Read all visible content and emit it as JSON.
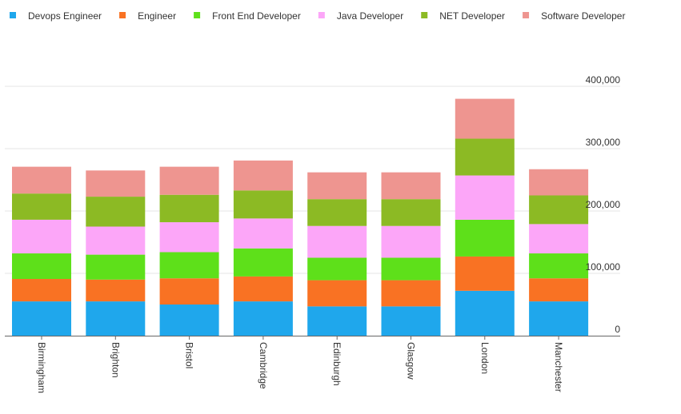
{
  "chart_data": {
    "type": "bar",
    "stacked": true,
    "title": "",
    "xlabel": "",
    "ylabel": "",
    "ylim": [
      0,
      400000
    ],
    "grid": true,
    "legend_position": "top-left",
    "categories": [
      "Birmingham",
      "Brighton",
      "Bristol",
      "Cambridge",
      "Edinburgh",
      "Glasgow",
      "London",
      "Manchester"
    ],
    "y_ticks": [
      {
        "value": 0,
        "label": "0"
      },
      {
        "value": 100000,
        "label": "100,000"
      },
      {
        "value": 200000,
        "label": "200,000"
      },
      {
        "value": 300000,
        "label": "300,000"
      },
      {
        "value": 400000,
        "label": "400,000"
      }
    ],
    "series": [
      {
        "name": "Devops Engineer",
        "color": "#1fa7ec",
        "values": [
          55000,
          55000,
          50000,
          55000,
          47000,
          47000,
          72000,
          55000
        ]
      },
      {
        "name": "Engineer",
        "color": "#f97223",
        "values": [
          36000,
          35000,
          42000,
          40000,
          42000,
          42000,
          55000,
          37000
        ]
      },
      {
        "name": "Front End Developer",
        "color": "#5ee01a",
        "values": [
          41000,
          40000,
          42000,
          45000,
          36000,
          36000,
          59000,
          40000
        ]
      },
      {
        "name": "Java Developer",
        "color": "#fca6f8",
        "values": [
          54000,
          45000,
          48000,
          48000,
          51000,
          51000,
          71000,
          47000
        ]
      },
      {
        "name": "NET Developer",
        "color": "#8cba24",
        "values": [
          42000,
          48000,
          44000,
          45000,
          43000,
          43000,
          59000,
          46000
        ]
      },
      {
        "name": "Software Developer",
        "color": "#ee9590",
        "values": [
          43000,
          42000,
          45000,
          48000,
          43000,
          43000,
          64000,
          42000
        ]
      }
    ]
  }
}
